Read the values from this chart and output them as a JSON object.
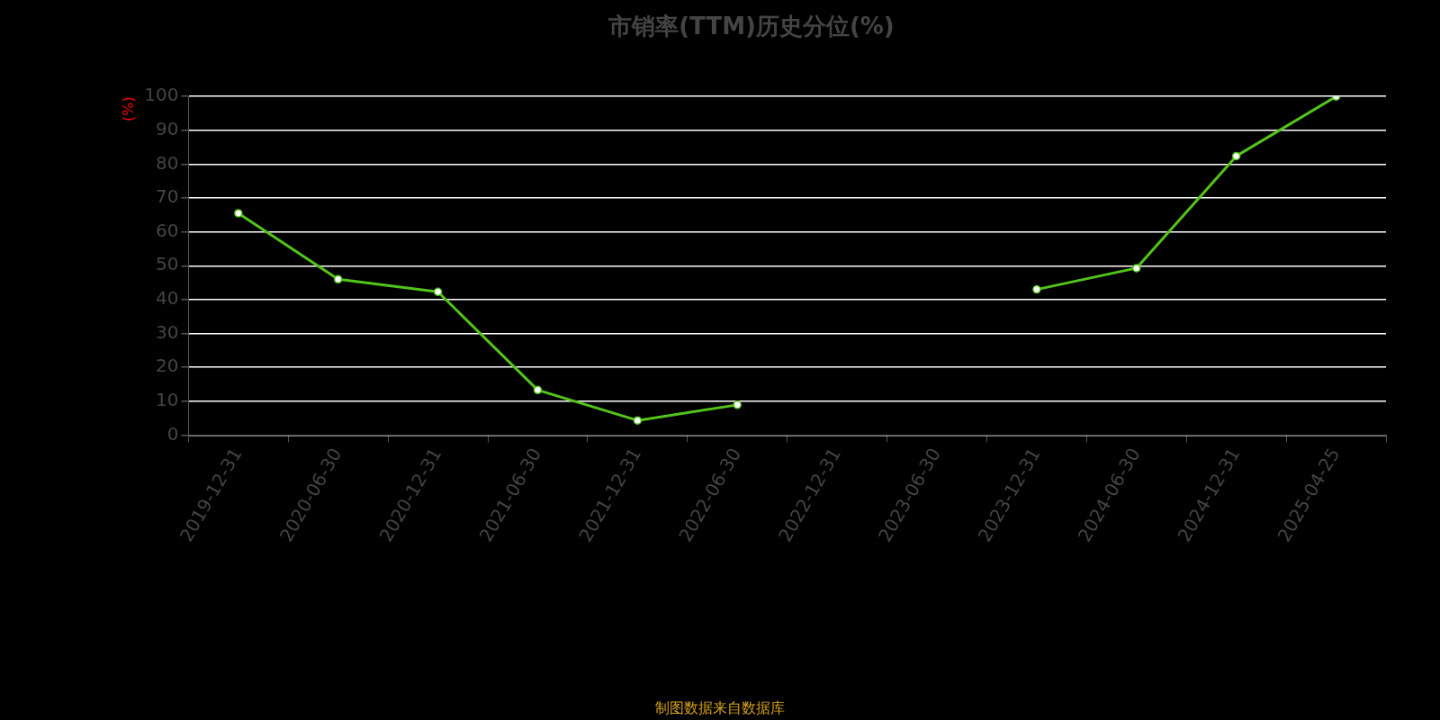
{
  "chart_data": {
    "type": "line",
    "title": "市销率(TTM)历史分位(%)",
    "ylabel": "(%)",
    "annotations": [
      "制图数据来自数据库"
    ],
    "categories": [
      "2019-12-31",
      "2020-06-30",
      "2020-12-31",
      "2021-06-30",
      "2021-12-31",
      "2022-06-30",
      "2022-12-31",
      "2023-06-30",
      "2023-12-31",
      "2024-06-30",
      "2024-12-31",
      "2025-04-25"
    ],
    "series": [
      {
        "color": "#52c41a",
        "values": [
          65.5,
          46,
          42.3,
          13.3,
          4.3,
          8.9,
          null,
          null,
          43,
          49.3,
          82.4,
          100
        ]
      }
    ],
    "ylim": [
      0,
      100
    ],
    "yticks": [
      0,
      10,
      20,
      30,
      40,
      50,
      60,
      70,
      80,
      90,
      100
    ],
    "grid": "y",
    "legend": false,
    "marker": "circle",
    "line_style": "solid"
  }
}
